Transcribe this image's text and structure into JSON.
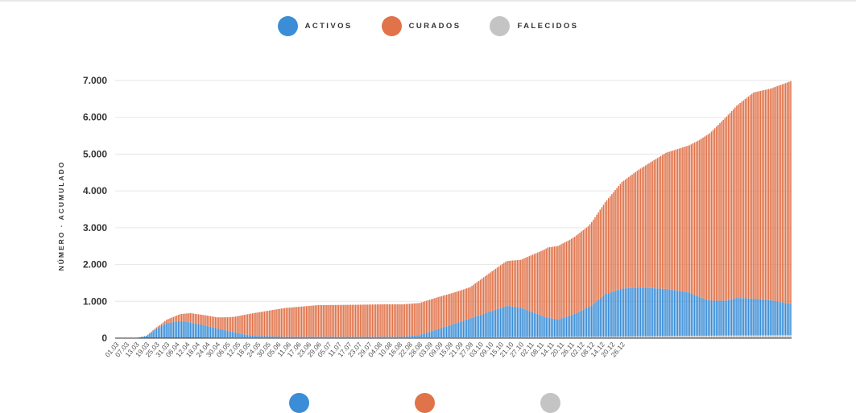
{
  "legend": [
    {
      "label": "ACTIVOS",
      "color": "#3a8dd6"
    },
    {
      "label": "CURADOS",
      "color": "#e0734a"
    },
    {
      "label": "FALECIDOS",
      "color": "#c4c4c4"
    }
  ],
  "chart_data": {
    "type": "bar",
    "stacked": true,
    "title": "",
    "xlabel": "",
    "ylabel": "NÚMERO · ACUMULADO",
    "ylim": [
      0,
      7000
    ],
    "yticks": [
      "0",
      "1.000",
      "2.000",
      "3.000",
      "4.000",
      "5.000",
      "6.000",
      "7.000"
    ],
    "ytick_values": [
      0,
      1000,
      2000,
      3000,
      4000,
      5000,
      6000,
      7000
    ],
    "x_tick_labels": [
      "01.03",
      "07.03",
      "13.03",
      "19.03",
      "25.03",
      "31.03",
      "06.04",
      "12.04",
      "18.04",
      "24.04",
      "30.04",
      "06.05",
      "12.05",
      "18.05",
      "24.05",
      "30.05",
      "05.06",
      "11.06",
      "17.06",
      "23.06",
      "29.06",
      "05.07",
      "11.07",
      "17.07",
      "23.07",
      "29.07",
      "04.08",
      "10.08",
      "16.08",
      "22.08",
      "28.08",
      "03.09",
      "09.09",
      "15.09",
      "21.09",
      "27.09",
      "03.10",
      "09.10",
      "15.10",
      "21.10",
      "27.10",
      "02.11",
      "08.11",
      "14.11",
      "20.11",
      "26.11",
      "02.12",
      "08.12",
      "14.12",
      "20.12",
      "26.12"
    ],
    "grid": true,
    "legend_position": "top-center",
    "series": [
      {
        "name": "ACTIVOS",
        "color": "#3a8dd6",
        "keypoints": [
          [
            0,
            0
          ],
          [
            12,
            0
          ],
          [
            18,
            60
          ],
          [
            24,
            250
          ],
          [
            30,
            400
          ],
          [
            38,
            460
          ],
          [
            44,
            420
          ],
          [
            54,
            320
          ],
          [
            66,
            180
          ],
          [
            80,
            50
          ],
          [
            100,
            20
          ],
          [
            140,
            15
          ],
          [
            170,
            20
          ],
          [
            180,
            60
          ],
          [
            196,
            300
          ],
          [
            206,
            450
          ],
          [
            222,
            700
          ],
          [
            232,
            850
          ],
          [
            240,
            800
          ],
          [
            254,
            550
          ],
          [
            262,
            470
          ],
          [
            272,
            620
          ],
          [
            282,
            850
          ],
          [
            290,
            1150
          ],
          [
            300,
            1300
          ],
          [
            310,
            1330
          ],
          [
            326,
            1280
          ],
          [
            340,
            1180
          ],
          [
            346,
            1050
          ],
          [
            352,
            950
          ],
          [
            362,
            950
          ],
          [
            368,
            1020
          ],
          [
            378,
            1000
          ],
          [
            388,
            950
          ],
          [
            394,
            900
          ],
          [
            400,
            850
          ]
        ]
      },
      {
        "name": "CURADOS",
        "color": "#e0734a",
        "keypoints": [
          [
            0,
            0
          ],
          [
            18,
            0
          ],
          [
            26,
            50
          ],
          [
            34,
            140
          ],
          [
            44,
            250
          ],
          [
            60,
            300
          ],
          [
            70,
            420
          ],
          [
            80,
            600
          ],
          [
            100,
            780
          ],
          [
            120,
            860
          ],
          [
            160,
            880
          ],
          [
            190,
            870
          ],
          [
            200,
            850
          ],
          [
            210,
            850
          ],
          [
            230,
            1200
          ],
          [
            240,
            1300
          ],
          [
            256,
            1900
          ],
          [
            262,
            2000
          ],
          [
            268,
            2050
          ],
          [
            280,
            2200
          ],
          [
            290,
            2500
          ],
          [
            300,
            2900
          ],
          [
            310,
            3200
          ],
          [
            326,
            3700
          ],
          [
            340,
            4000
          ],
          [
            352,
            4550
          ],
          [
            362,
            5000
          ],
          [
            370,
            5300
          ],
          [
            378,
            5600
          ],
          [
            388,
            5750
          ],
          [
            394,
            5900
          ],
          [
            400,
            6050
          ]
        ]
      },
      {
        "name": "FALECIDOS",
        "color": "#c4c4c4",
        "keypoints": [
          [
            0,
            0
          ],
          [
            30,
            5
          ],
          [
            60,
            15
          ],
          [
            120,
            20
          ],
          [
            200,
            22
          ],
          [
            240,
            28
          ],
          [
            300,
            45
          ],
          [
            360,
            70
          ],
          [
            400,
            82
          ]
        ]
      }
    ],
    "n_days": 401
  }
}
